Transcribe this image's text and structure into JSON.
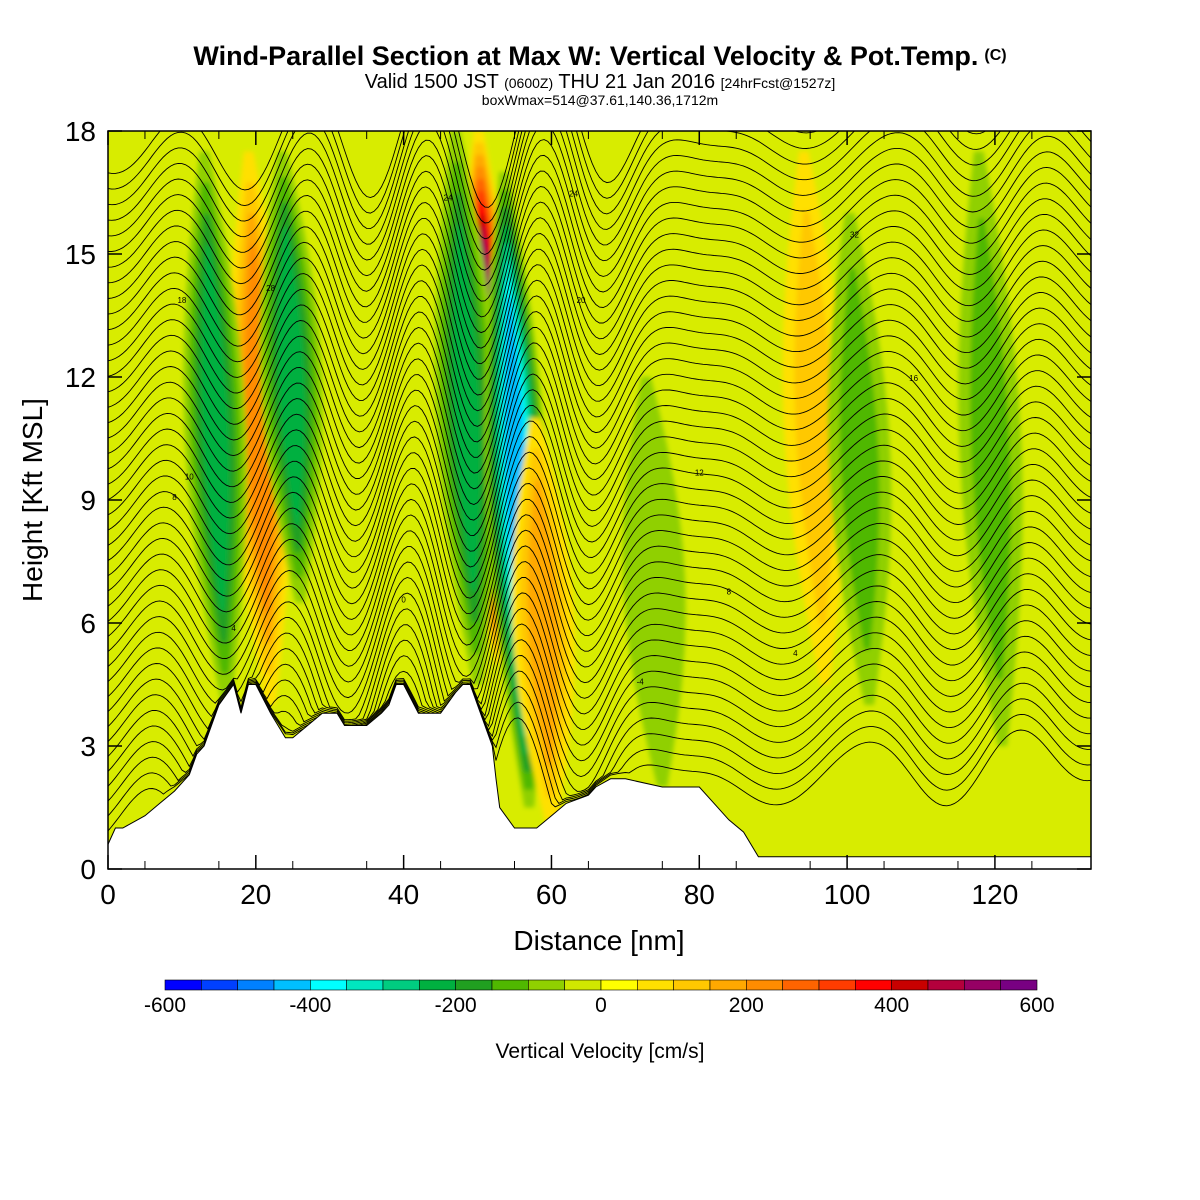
{
  "title": {
    "main": "Wind-Parallel Section at Max W: Vertical Velocity & Pot.Temp.",
    "copyright": "(C)",
    "valid_prefix": "Valid 1500 JST",
    "valid_utc": "(0600Z)",
    "valid_suffix": "THU 21 Jan 2016",
    "forecast": "[24hrFcst@1527z]",
    "box": "boxWmax=514@37.61,140.36,1712m"
  },
  "chart_data": {
    "type": "heatmap",
    "xlabel": "Distance [nm]",
    "ylabel": "Height [Kft MSL]",
    "xlim": [
      0,
      133
    ],
    "ylim": [
      0,
      18
    ],
    "x_ticks": [
      0,
      20,
      40,
      60,
      80,
      100,
      120
    ],
    "y_ticks": [
      0,
      3,
      6,
      9,
      12,
      15,
      18
    ],
    "colorbar": {
      "label": "Vertical Velocity [cm/s]",
      "tick_labels": [
        -600,
        -400,
        -200,
        0,
        200,
        400,
        600
      ],
      "levels": [
        -600,
        -550,
        -500,
        -450,
        -400,
        -350,
        -300,
        -250,
        -200,
        -150,
        -100,
        -50,
        0,
        50,
        100,
        150,
        200,
        250,
        300,
        350,
        400,
        450,
        500,
        550,
        600
      ],
      "colors": [
        "#0000ff",
        "#0040ff",
        "#0080ff",
        "#00bfff",
        "#00ffff",
        "#00e6bf",
        "#00cc80",
        "#00b040",
        "#20a020",
        "#50b800",
        "#90d000",
        "#d0e800",
        "#ffff00",
        "#ffe000",
        "#ffc800",
        "#ffa800",
        "#ff8c00",
        "#ff6400",
        "#ff3c00",
        "#ff0000",
        "#c80000",
        "#b4003c",
        "#960064",
        "#780082",
        "#5a009a"
      ]
    },
    "velocity_features": [
      {
        "kind": "updraft",
        "x": 22,
        "z_range": [
          4.0,
          17.5
        ],
        "peak": 200
      },
      {
        "kind": "downdraft",
        "x": 16,
        "z_range": [
          4.0,
          17.5
        ],
        "peak": -200
      },
      {
        "kind": "downdraft",
        "x": 26,
        "z_range": [
          6.5,
          17.5
        ],
        "peak": -220
      },
      {
        "kind": "updraft",
        "x": 53,
        "z_range": [
          5.0,
          18.0
        ],
        "peak": 514
      },
      {
        "kind": "downdraft",
        "x": 50,
        "z_range": [
          4.5,
          18.0
        ],
        "peak": -200
      },
      {
        "kind": "downdraft",
        "x": 57,
        "z_range": [
          1.5,
          17.0
        ],
        "peak": -400
      },
      {
        "kind": "updraft",
        "x": 60,
        "z_range": [
          1.0,
          11.0
        ],
        "peak": 180
      },
      {
        "kind": "updraft",
        "x": 97,
        "z_range": [
          4.5,
          17.5
        ],
        "peak": 140
      },
      {
        "kind": "downdraft",
        "x": 103,
        "z_range": [
          4.0,
          16.0
        ],
        "peak": -100
      },
      {
        "kind": "downdraft",
        "x": 75,
        "z_range": [
          2.0,
          12.0
        ],
        "peak": -90
      },
      {
        "kind": "downdraft",
        "x": 121,
        "z_range": [
          3.0,
          17.5
        ],
        "peak": -100
      }
    ],
    "terrain": {
      "x": [
        0,
        1,
        2,
        5,
        7,
        9,
        11,
        12,
        13,
        14,
        15,
        17,
        18,
        19,
        20,
        22,
        23,
        24,
        25,
        27,
        29,
        31,
        32,
        35,
        37,
        38,
        39,
        40,
        42,
        43,
        45,
        47,
        48,
        49,
        50,
        52,
        52.5,
        53,
        55,
        58,
        60,
        62,
        65,
        66,
        68,
        70,
        75,
        80,
        82,
        84,
        86,
        88,
        95,
        133
      ],
      "y": [
        0.6,
        1.0,
        1.0,
        1.3,
        1.6,
        1.9,
        2.3,
        2.8,
        3.0,
        3.5,
        4.0,
        4.5,
        3.8,
        4.5,
        4.5,
        3.8,
        3.5,
        3.2,
        3.2,
        3.5,
        3.8,
        3.8,
        3.5,
        3.5,
        3.8,
        4.0,
        4.5,
        4.5,
        3.8,
        3.8,
        3.8,
        4.3,
        4.5,
        4.5,
        4.0,
        3.0,
        2.2,
        1.5,
        1.0,
        1.0,
        1.3,
        1.6,
        1.8,
        2.0,
        2.2,
        2.2,
        2.0,
        2.0,
        1.6,
        1.2,
        0.9,
        0.3,
        0.3,
        0.3
      ]
    },
    "theta_contours": {
      "levels": [
        -4,
        0,
        4,
        8,
        12,
        16,
        20,
        24,
        28,
        32
      ],
      "contour_labels": [
        {
          "text": "-4",
          "x": 72,
          "y": 4.5
        },
        {
          "text": "0",
          "x": 40,
          "y": 6.5
        },
        {
          "text": "4",
          "x": 17,
          "y": 5.8
        },
        {
          "text": "4",
          "x": 93,
          "y": 5.2
        },
        {
          "text": "8",
          "x": 9,
          "y": 9.0
        },
        {
          "text": "8",
          "x": 84,
          "y": 6.7
        },
        {
          "text": "10",
          "x": 11,
          "y": 9.5
        },
        {
          "text": "12",
          "x": 80,
          "y": 9.6
        },
        {
          "text": "16",
          "x": 109,
          "y": 11.9
        },
        {
          "text": "18",
          "x": 10,
          "y": 13.8
        },
        {
          "text": "20",
          "x": 64,
          "y": 13.8
        },
        {
          "text": "24",
          "x": 46,
          "y": 16.3
        },
        {
          "text": "24",
          "x": 63,
          "y": 16.4
        },
        {
          "text": "28",
          "x": 22,
          "y": 14.1
        },
        {
          "text": "32",
          "x": 101,
          "y": 15.4
        }
      ]
    }
  }
}
